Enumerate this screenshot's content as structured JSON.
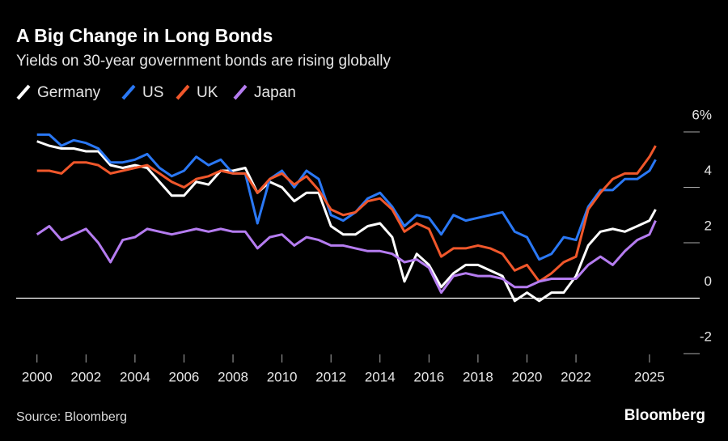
{
  "chart_data": {
    "type": "line",
    "title": "A Big Change in Long Bonds",
    "subtitle": "Yields on 30-year government bonds are rising globally",
    "source": "Source: Bloomberg",
    "brand": "Bloomberg",
    "x": [
      2000,
      2000.5,
      2001,
      2001.5,
      2002,
      2002.5,
      2003,
      2003.5,
      2004,
      2004.5,
      2005,
      2005.5,
      2006,
      2006.5,
      2007,
      2007.5,
      2008,
      2008.5,
      2009,
      2009.5,
      2010,
      2010.5,
      2011,
      2011.5,
      2012,
      2012.5,
      2013,
      2013.5,
      2014,
      2014.5,
      2015,
      2015.5,
      2016,
      2016.5,
      2017,
      2017.5,
      2018,
      2018.5,
      2019,
      2019.5,
      2020,
      2020.5,
      2021,
      2021.5,
      2022,
      2022.5,
      2023,
      2023.5,
      2024,
      2024.5,
      2025,
      2025.25
    ],
    "series": [
      {
        "name": "Germany",
        "color": "#ffffff",
        "values": [
          5.66,
          5.5,
          5.4,
          5.4,
          5.3,
          5.3,
          4.8,
          4.7,
          4.8,
          4.7,
          4.2,
          3.7,
          3.7,
          4.2,
          4.1,
          4.6,
          4.6,
          4.7,
          3.8,
          4.2,
          4.0,
          3.5,
          3.8,
          3.8,
          2.6,
          2.3,
          2.3,
          2.6,
          2.7,
          2.2,
          0.6,
          1.6,
          1.2,
          0.4,
          0.9,
          1.2,
          1.2,
          1.0,
          0.8,
          -0.1,
          0.2,
          -0.1,
          0.2,
          0.2,
          0.8,
          1.9,
          2.4,
          2.5,
          2.4,
          2.6,
          2.8,
          3.2
        ]
      },
      {
        "name": "US",
        "color": "#2a78f5",
        "values": [
          5.9,
          5.9,
          5.5,
          5.7,
          5.6,
          5.4,
          4.9,
          4.9,
          5.0,
          5.2,
          4.7,
          4.4,
          4.6,
          5.1,
          4.8,
          5.0,
          4.5,
          4.5,
          2.7,
          4.3,
          4.6,
          4.0,
          4.6,
          4.3,
          3.0,
          2.8,
          3.1,
          3.6,
          3.8,
          3.3,
          2.6,
          3.0,
          2.9,
          2.3,
          3.0,
          2.8,
          2.9,
          3.0,
          3.1,
          2.4,
          2.2,
          1.4,
          1.6,
          2.2,
          2.1,
          3.3,
          3.9,
          3.9,
          4.3,
          4.3,
          4.6,
          5.0
        ]
      },
      {
        "name": "UK",
        "color": "#f0572b",
        "values": [
          4.6,
          4.6,
          4.5,
          4.9,
          4.9,
          4.8,
          4.5,
          4.6,
          4.7,
          4.8,
          4.5,
          4.2,
          4.0,
          4.3,
          4.4,
          4.6,
          4.5,
          4.5,
          3.8,
          4.3,
          4.5,
          4.1,
          4.4,
          3.9,
          3.2,
          3.0,
          3.1,
          3.5,
          3.6,
          3.2,
          2.4,
          2.7,
          2.5,
          1.5,
          1.8,
          1.8,
          1.9,
          1.8,
          1.6,
          1.0,
          1.2,
          0.6,
          0.9,
          1.3,
          1.5,
          3.2,
          3.8,
          4.3,
          4.5,
          4.5,
          5.1,
          5.5
        ]
      },
      {
        "name": "Japan",
        "color": "#b57cf0",
        "values": [
          2.3,
          2.6,
          2.1,
          2.3,
          2.5,
          2.0,
          1.3,
          2.1,
          2.2,
          2.5,
          2.4,
          2.3,
          2.4,
          2.5,
          2.4,
          2.5,
          2.4,
          2.4,
          1.8,
          2.2,
          2.3,
          1.9,
          2.2,
          2.1,
          1.9,
          1.9,
          1.8,
          1.7,
          1.7,
          1.6,
          1.3,
          1.4,
          1.1,
          0.2,
          0.8,
          0.9,
          0.8,
          0.8,
          0.7,
          0.4,
          0.4,
          0.6,
          0.7,
          0.7,
          0.7,
          1.2,
          1.5,
          1.2,
          1.7,
          2.1,
          2.3,
          2.8
        ]
      }
    ],
    "xlim": [
      1999.15,
      2027.05
    ],
    "xticks": [
      2000,
      2002,
      2004,
      2006,
      2008,
      2010,
      2012,
      2014,
      2016,
      2018,
      2020,
      2022,
      2025
    ],
    "ylim": [
      -2,
      6
    ],
    "yticks": [
      {
        "value": 6,
        "label": "6%"
      },
      4,
      2,
      0,
      -2
    ]
  }
}
